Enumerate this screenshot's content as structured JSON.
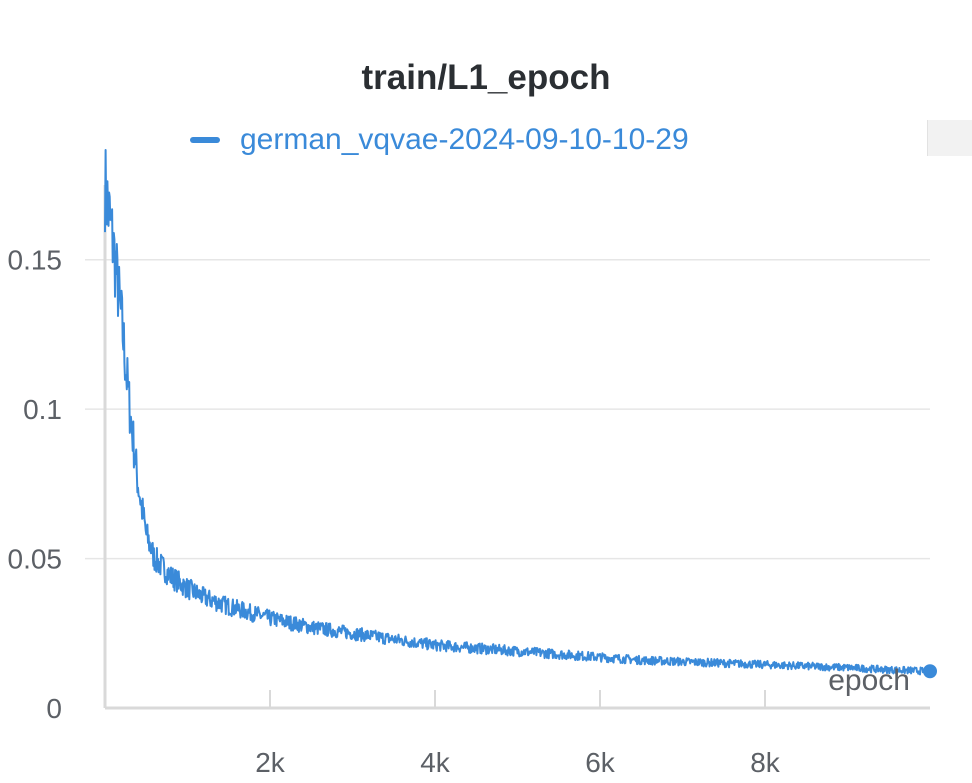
{
  "chart_data": {
    "type": "line",
    "title": "train/L1_epoch",
    "xlabel": "epoch",
    "ylabel": "",
    "xlim": [
      0,
      10000
    ],
    "ylim": [
      0,
      0.175
    ],
    "x_ticks": [
      {
        "value": 2000,
        "label": "2k"
      },
      {
        "value": 4000,
        "label": "4k"
      },
      {
        "value": 6000,
        "label": "6k"
      },
      {
        "value": 8000,
        "label": "8k"
      }
    ],
    "y_ticks": [
      {
        "value": 0,
        "label": "0"
      },
      {
        "value": 0.05,
        "label": "0.05"
      },
      {
        "value": 0.1,
        "label": "0.1"
      },
      {
        "value": 0.15,
        "label": "0.15"
      }
    ],
    "grid": "horizontal",
    "legend_position": "top",
    "series": [
      {
        "name": "german_vqvae-2024-09-10-10-29",
        "color": "#3a8ad9",
        "x": [
          0,
          100,
          200,
          300,
          400,
          500,
          600,
          800,
          1000,
          1200,
          1500,
          2000,
          2500,
          3000,
          3500,
          4000,
          4500,
          5000,
          5500,
          6000,
          6500,
          7000,
          7500,
          8000,
          8500,
          9000,
          9500,
          10000
        ],
        "y": [
          0.175,
          0.155,
          0.13,
          0.1,
          0.075,
          0.058,
          0.05,
          0.044,
          0.04,
          0.037,
          0.034,
          0.03,
          0.027,
          0.025,
          0.023,
          0.021,
          0.02,
          0.019,
          0.018,
          0.017,
          0.016,
          0.0155,
          0.015,
          0.0145,
          0.014,
          0.0135,
          0.0128,
          0.0123
        ]
      }
    ]
  }
}
